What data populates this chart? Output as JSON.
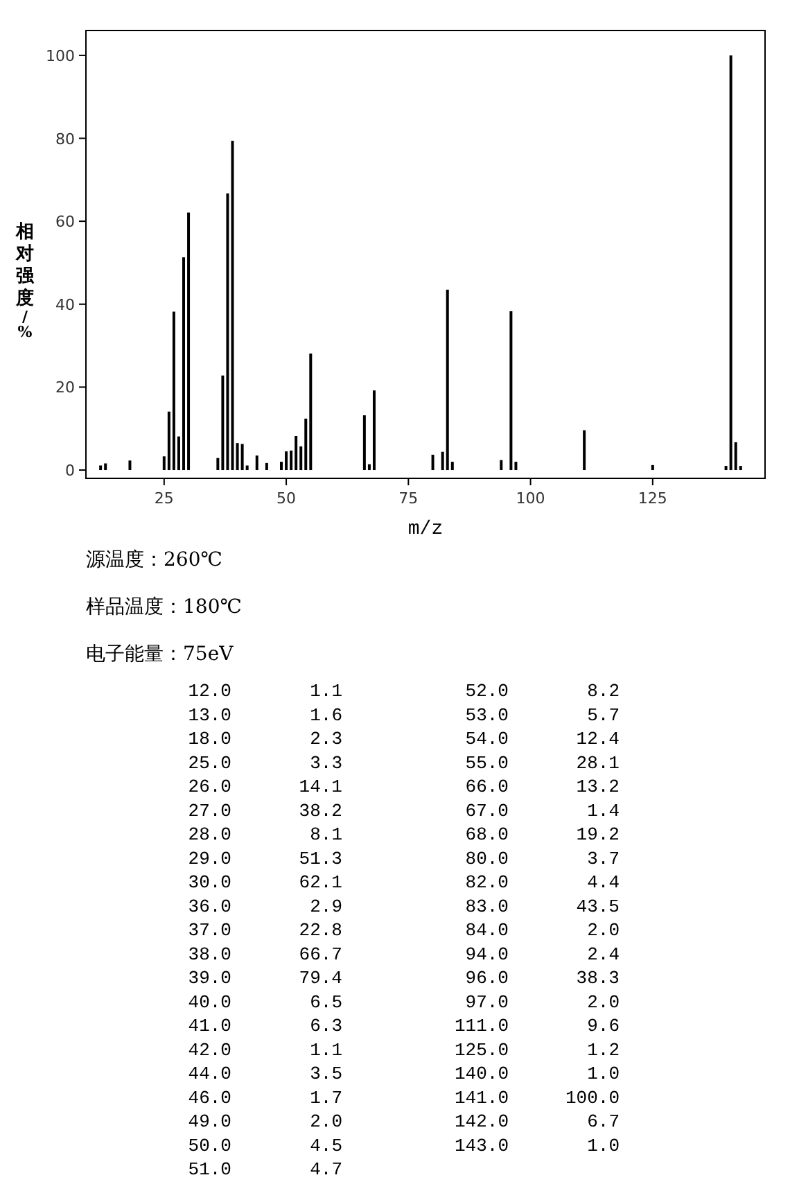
{
  "chart_data": [
    {
      "type": "bar",
      "xlabel": "m/z",
      "ylabel": "相对强度/%",
      "x": [
        12,
        13,
        18,
        25,
        26,
        27,
        28,
        29,
        30,
        36,
        37,
        38,
        39,
        40,
        41,
        42,
        44,
        46,
        49,
        50,
        51,
        52,
        53,
        54,
        55,
        66,
        67,
        68,
        80,
        82,
        83,
        84,
        94,
        96,
        97,
        111,
        125,
        140,
        141,
        142,
        143
      ],
      "values": [
        1.1,
        1.6,
        2.3,
        3.3,
        14.1,
        38.2,
        8.1,
        51.3,
        62.1,
        2.9,
        22.8,
        66.7,
        79.4,
        6.5,
        6.3,
        1.1,
        3.5,
        1.7,
        2.0,
        4.5,
        4.7,
        8.2,
        5.7,
        12.4,
        28.1,
        13.2,
        1.4,
        19.2,
        3.7,
        4.4,
        43.5,
        2.0,
        2.4,
        38.3,
        2.0,
        9.6,
        1.2,
        1.0,
        100.0,
        6.7,
        1.0
      ],
      "color": "#000000",
      "xlim": [
        9,
        148
      ],
      "ylim": [
        -2,
        106
      ],
      "xticks": [
        25,
        50,
        75,
        100,
        125
      ],
      "yticks": [
        0,
        20,
        40,
        60,
        80,
        100
      ],
      "annotations": [
        "源温度：260℃",
        "样品温度：180℃",
        "电子能量：75eV"
      ]
    },
    {
      "type": "other",
      "annotations": [
        "12.0",
        "1.1",
        "13.0",
        "1.6",
        "18.0",
        "2.3",
        "25.0",
        "3.3",
        "26.0",
        "14.1",
        "27.0",
        "38.2",
        "28.0",
        "8.1",
        "29.0",
        "51.3",
        "30.0",
        "62.1",
        "36.0",
        "2.9",
        "37.0",
        "22.8",
        "38.0",
        "66.7",
        "39.0",
        "79.4",
        "40.0",
        "6.5",
        "41.0",
        "6.3",
        "42.0",
        "1.1",
        "44.0",
        "3.5",
        "46.0",
        "1.7",
        "49.0",
        "2.0",
        "50.0",
        "4.5",
        "51.0",
        "4.7",
        "52.0",
        "8.2",
        "53.0",
        "5.7",
        "54.0",
        "12.4",
        "55.0",
        "28.1",
        "66.0",
        "13.2",
        "67.0",
        "1.4",
        "68.0",
        "19.2",
        "80.0",
        "3.7",
        "82.0",
        "4.4",
        "83.0",
        "43.5",
        "84.0",
        "2.0",
        "94.0",
        "2.4",
        "96.0",
        "38.3",
        "97.0",
        "2.0",
        "111.0",
        "9.6",
        "125.0",
        "1.2",
        "140.0",
        "1.0",
        "141.0",
        "100.0",
        "142.0",
        "6.7",
        "143.0",
        "1.0"
      ]
    }
  ]
}
